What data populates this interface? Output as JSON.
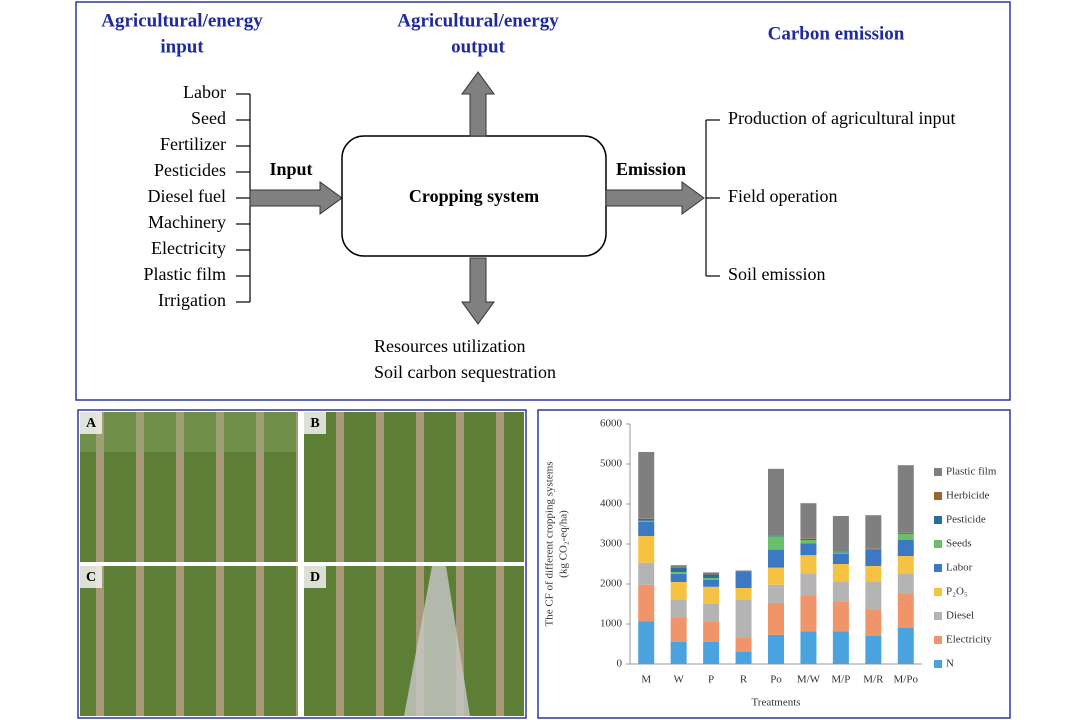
{
  "diagram": {
    "input_header": [
      "Agricultural/energy",
      "input"
    ],
    "output_header": [
      "Agricultural/energy",
      "output"
    ],
    "emission_header": "Carbon emission",
    "inputs": [
      "Labor",
      "Seed",
      "Fertilizer",
      "Pesticides",
      "Diesel fuel",
      "Machinery",
      "Electricity",
      "Plastic film",
      "Irrigation"
    ],
    "input_label": "Input",
    "center": "Cropping system",
    "emission_label": "Emission",
    "emissions": [
      "Production of agricultural input",
      "Field operation",
      "Soil emission"
    ],
    "outputs": [
      "Resources utilization",
      "Soil carbon sequestration"
    ]
  },
  "photos": {
    "labels": [
      "A",
      "B",
      "C",
      "D"
    ]
  },
  "chart_data": {
    "type": "stacked-bar",
    "y_label": [
      "The CF of different cropping systems",
      "(kg CO₂-eq/ha)"
    ],
    "x_label": "Treatments",
    "categories": [
      "M",
      "W",
      "P",
      "R",
      "Po",
      "M/W",
      "M/P",
      "M/R",
      "M/Po"
    ],
    "ylim": [
      0,
      6000
    ],
    "yticks": [
      0,
      1000,
      2000,
      3000,
      4000,
      5000,
      6000
    ],
    "legend": "right",
    "series": [
      {
        "name": "N",
        "color": "#4aa3df",
        "values": [
          1070,
          550,
          550,
          300,
          730,
          820,
          820,
          700,
          900
        ]
      },
      {
        "name": "Electricity",
        "color": "#f0956a",
        "values": [
          910,
          600,
          500,
          350,
          800,
          880,
          750,
          650,
          850
        ]
      },
      {
        "name": "Diesel",
        "color": "#b4b4b4",
        "values": [
          550,
          450,
          450,
          950,
          450,
          560,
          500,
          700,
          500
        ]
      },
      {
        "name": "P₂O₅",
        "color": "#f5c242",
        "values": [
          670,
          450,
          430,
          300,
          430,
          460,
          430,
          400,
          450
        ]
      },
      {
        "name": "Labor",
        "color": "#3c78c4",
        "values": [
          350,
          200,
          170,
          400,
          450,
          300,
          250,
          400,
          400
        ]
      },
      {
        "name": "Seeds",
        "color": "#6abf69",
        "values": [
          30,
          50,
          50,
          10,
          330,
          80,
          40,
          10,
          150
        ]
      },
      {
        "name": "Pesticide",
        "color": "#2a6f9b",
        "values": [
          50,
          100,
          90,
          20,
          20,
          30,
          20,
          20,
          20
        ]
      },
      {
        "name": "Herbicide",
        "color": "#a0612a",
        "values": [
          10,
          20,
          10,
          0,
          10,
          10,
          10,
          10,
          10
        ]
      },
      {
        "name": "Plastic film",
        "color": "#7f7f7f",
        "values": [
          1660,
          50,
          40,
          10,
          1660,
          880,
          880,
          830,
          1690
        ]
      }
    ]
  }
}
